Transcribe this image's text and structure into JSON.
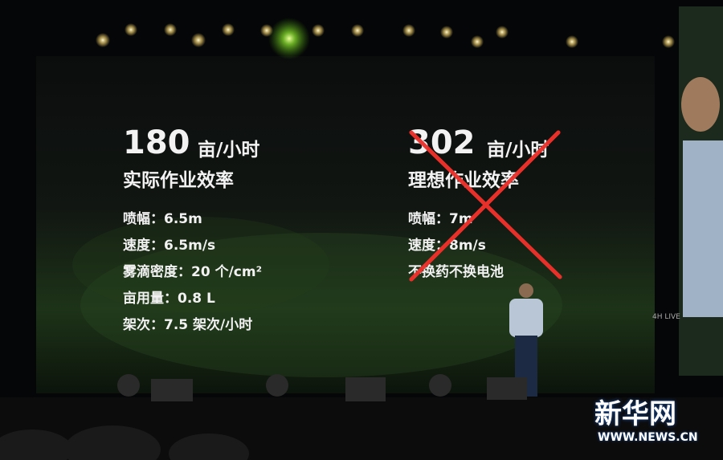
{
  "slide": {
    "left": {
      "value": "180",
      "unit": "亩/小时",
      "subtitle": "实际作业效率",
      "specs": [
        "喷幅：6.5m",
        "速度：6.5m/s",
        "雾滴密度：20 个/cm²",
        "亩用量：0.8 L",
        "架次：7.5 架次/小时"
      ]
    },
    "right": {
      "value": "302",
      "unit": "亩/小时",
      "subtitle": "理想作业效率",
      "specs": [
        "喷幅：7m",
        "速度：8m/s",
        "不换药不换电池"
      ]
    }
  },
  "stage_logo": "4H LIVE",
  "watermark": {
    "name": "新华网",
    "url": "WWW.NEWS.CN"
  }
}
